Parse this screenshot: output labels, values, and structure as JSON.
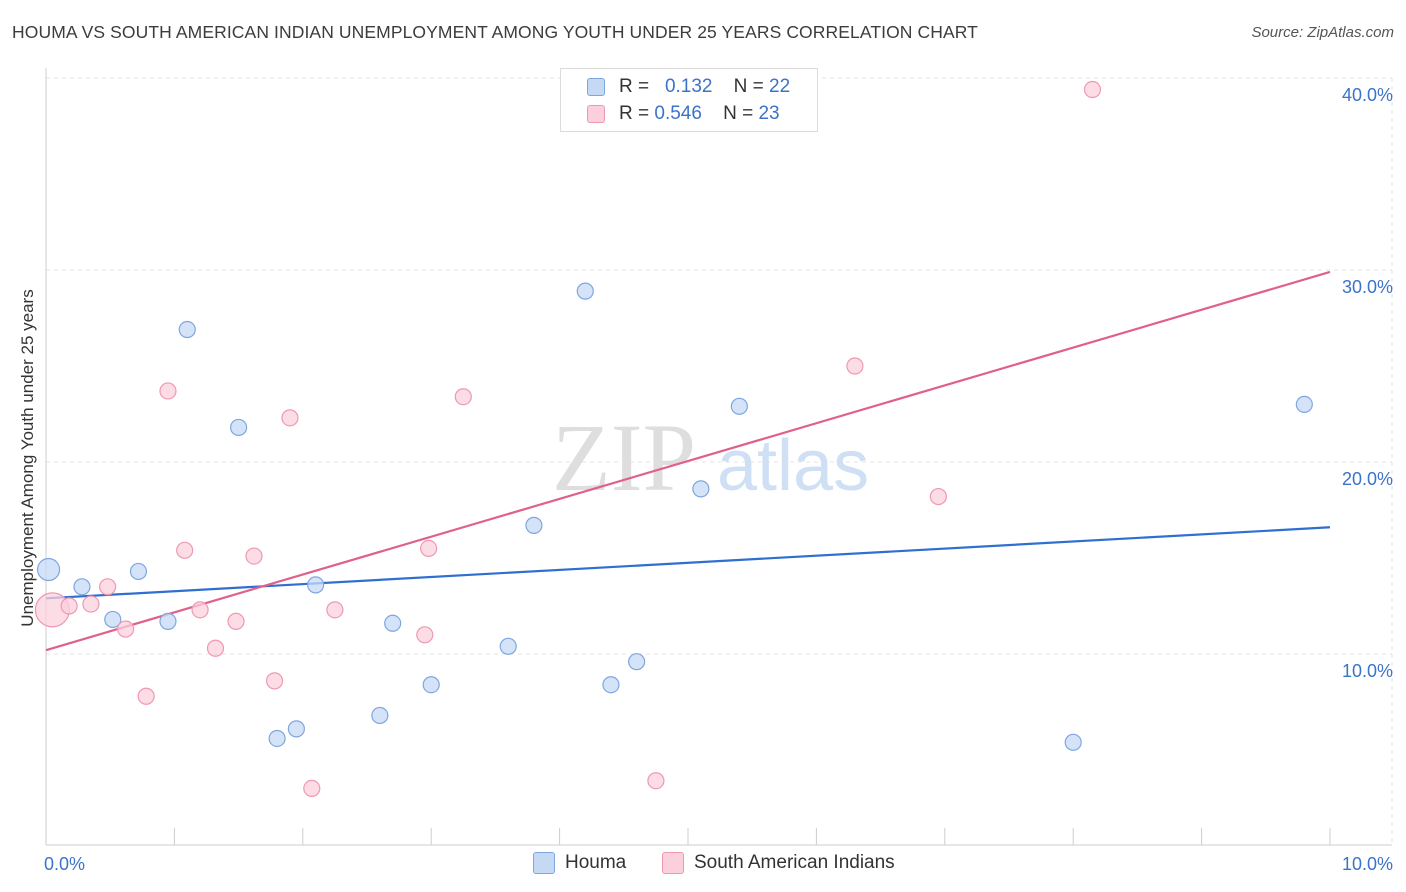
{
  "title": "HOUMA VS SOUTH AMERICAN INDIAN UNEMPLOYMENT AMONG YOUTH UNDER 25 YEARS CORRELATION CHART",
  "source": "Source: ZipAtlas.com",
  "watermark": {
    "zip": "ZIP",
    "atlas": "atlas"
  },
  "legend": {
    "rows": [
      {
        "r_label": "R =",
        "r_value": "0.132",
        "n_label": "N =",
        "n_value": "22"
      },
      {
        "r_label": "R =",
        "r_value": "0.546",
        "n_label": "N =",
        "n_value": "23"
      }
    ]
  },
  "bottom_legend": [
    "Houma",
    "South American Indians"
  ],
  "colors": {
    "houma_fill": "#c5d9f5",
    "houma_stroke": "#7ea6e0",
    "houma_line": "#2f6fd0",
    "sai_fill": "#fbd0dc",
    "sai_stroke": "#ef98b2",
    "sai_line": "#e0608c",
    "axis_text": "#3b73c9",
    "grid": "#e3e3e3"
  },
  "chart_data": {
    "type": "scatter",
    "title": "HOUMA VS SOUTH AMERICAN INDIAN UNEMPLOYMENT AMONG YOUTH UNDER 25 YEARS CORRELATION CHART",
    "xlabel": "",
    "ylabel": "Unemployment Among Youth under 25 years",
    "xlim": [
      0,
      10
    ],
    "ylim": [
      0,
      40
    ],
    "x_tick_labels": [
      "0.0%",
      "10.0%"
    ],
    "y_tick_labels": [
      "10.0%",
      "20.0%",
      "30.0%",
      "40.0%"
    ],
    "y_tick_values": [
      10,
      20,
      30,
      40
    ],
    "grid": true,
    "series": [
      {
        "name": "Houma",
        "R": 0.132,
        "N": 22,
        "points": [
          {
            "x": 0.02,
            "y": 14.4,
            "big": true
          },
          {
            "x": 0.28,
            "y": 13.5
          },
          {
            "x": 0.52,
            "y": 11.8
          },
          {
            "x": 0.72,
            "y": 14.3
          },
          {
            "x": 0.95,
            "y": 11.7
          },
          {
            "x": 1.1,
            "y": 26.9
          },
          {
            "x": 1.5,
            "y": 21.8
          },
          {
            "x": 1.8,
            "y": 5.6
          },
          {
            "x": 1.95,
            "y": 6.1
          },
          {
            "x": 2.1,
            "y": 13.6
          },
          {
            "x": 2.6,
            "y": 6.8
          },
          {
            "x": 2.7,
            "y": 11.6
          },
          {
            "x": 3.0,
            "y": 8.4
          },
          {
            "x": 3.6,
            "y": 10.4
          },
          {
            "x": 3.8,
            "y": 16.7
          },
          {
            "x": 4.2,
            "y": 28.9
          },
          {
            "x": 4.4,
            "y": 8.4
          },
          {
            "x": 4.6,
            "y": 9.6
          },
          {
            "x": 5.1,
            "y": 18.6
          },
          {
            "x": 5.4,
            "y": 22.9
          },
          {
            "x": 8.0,
            "y": 5.4
          },
          {
            "x": 9.8,
            "y": 23.0
          }
        ],
        "trend": {
          "x": [
            0,
            10
          ],
          "y": [
            12.9,
            16.6
          ]
        }
      },
      {
        "name": "South American Indians",
        "R": 0.546,
        "N": 23,
        "points": [
          {
            "x": 0.05,
            "y": 12.3,
            "big": true
          },
          {
            "x": 0.18,
            "y": 12.5
          },
          {
            "x": 0.35,
            "y": 12.6
          },
          {
            "x": 0.48,
            "y": 13.5
          },
          {
            "x": 0.62,
            "y": 11.3
          },
          {
            "x": 0.78,
            "y": 7.8
          },
          {
            "x": 0.95,
            "y": 23.7
          },
          {
            "x": 1.08,
            "y": 15.4
          },
          {
            "x": 1.2,
            "y": 12.3
          },
          {
            "x": 1.32,
            "y": 10.3
          },
          {
            "x": 1.48,
            "y": 11.7
          },
          {
            "x": 1.62,
            "y": 15.1
          },
          {
            "x": 1.78,
            "y": 8.6
          },
          {
            "x": 1.9,
            "y": 22.3
          },
          {
            "x": 2.07,
            "y": 3.0
          },
          {
            "x": 2.25,
            "y": 12.3
          },
          {
            "x": 2.95,
            "y": 11.0
          },
          {
            "x": 2.98,
            "y": 15.5
          },
          {
            "x": 3.25,
            "y": 23.4
          },
          {
            "x": 4.75,
            "y": 3.4
          },
          {
            "x": 6.3,
            "y": 25.0
          },
          {
            "x": 6.95,
            "y": 18.2
          },
          {
            "x": 8.15,
            "y": 39.4
          }
        ],
        "trend": {
          "x": [
            0,
            10
          ],
          "y": [
            10.2,
            29.9
          ]
        }
      }
    ]
  }
}
